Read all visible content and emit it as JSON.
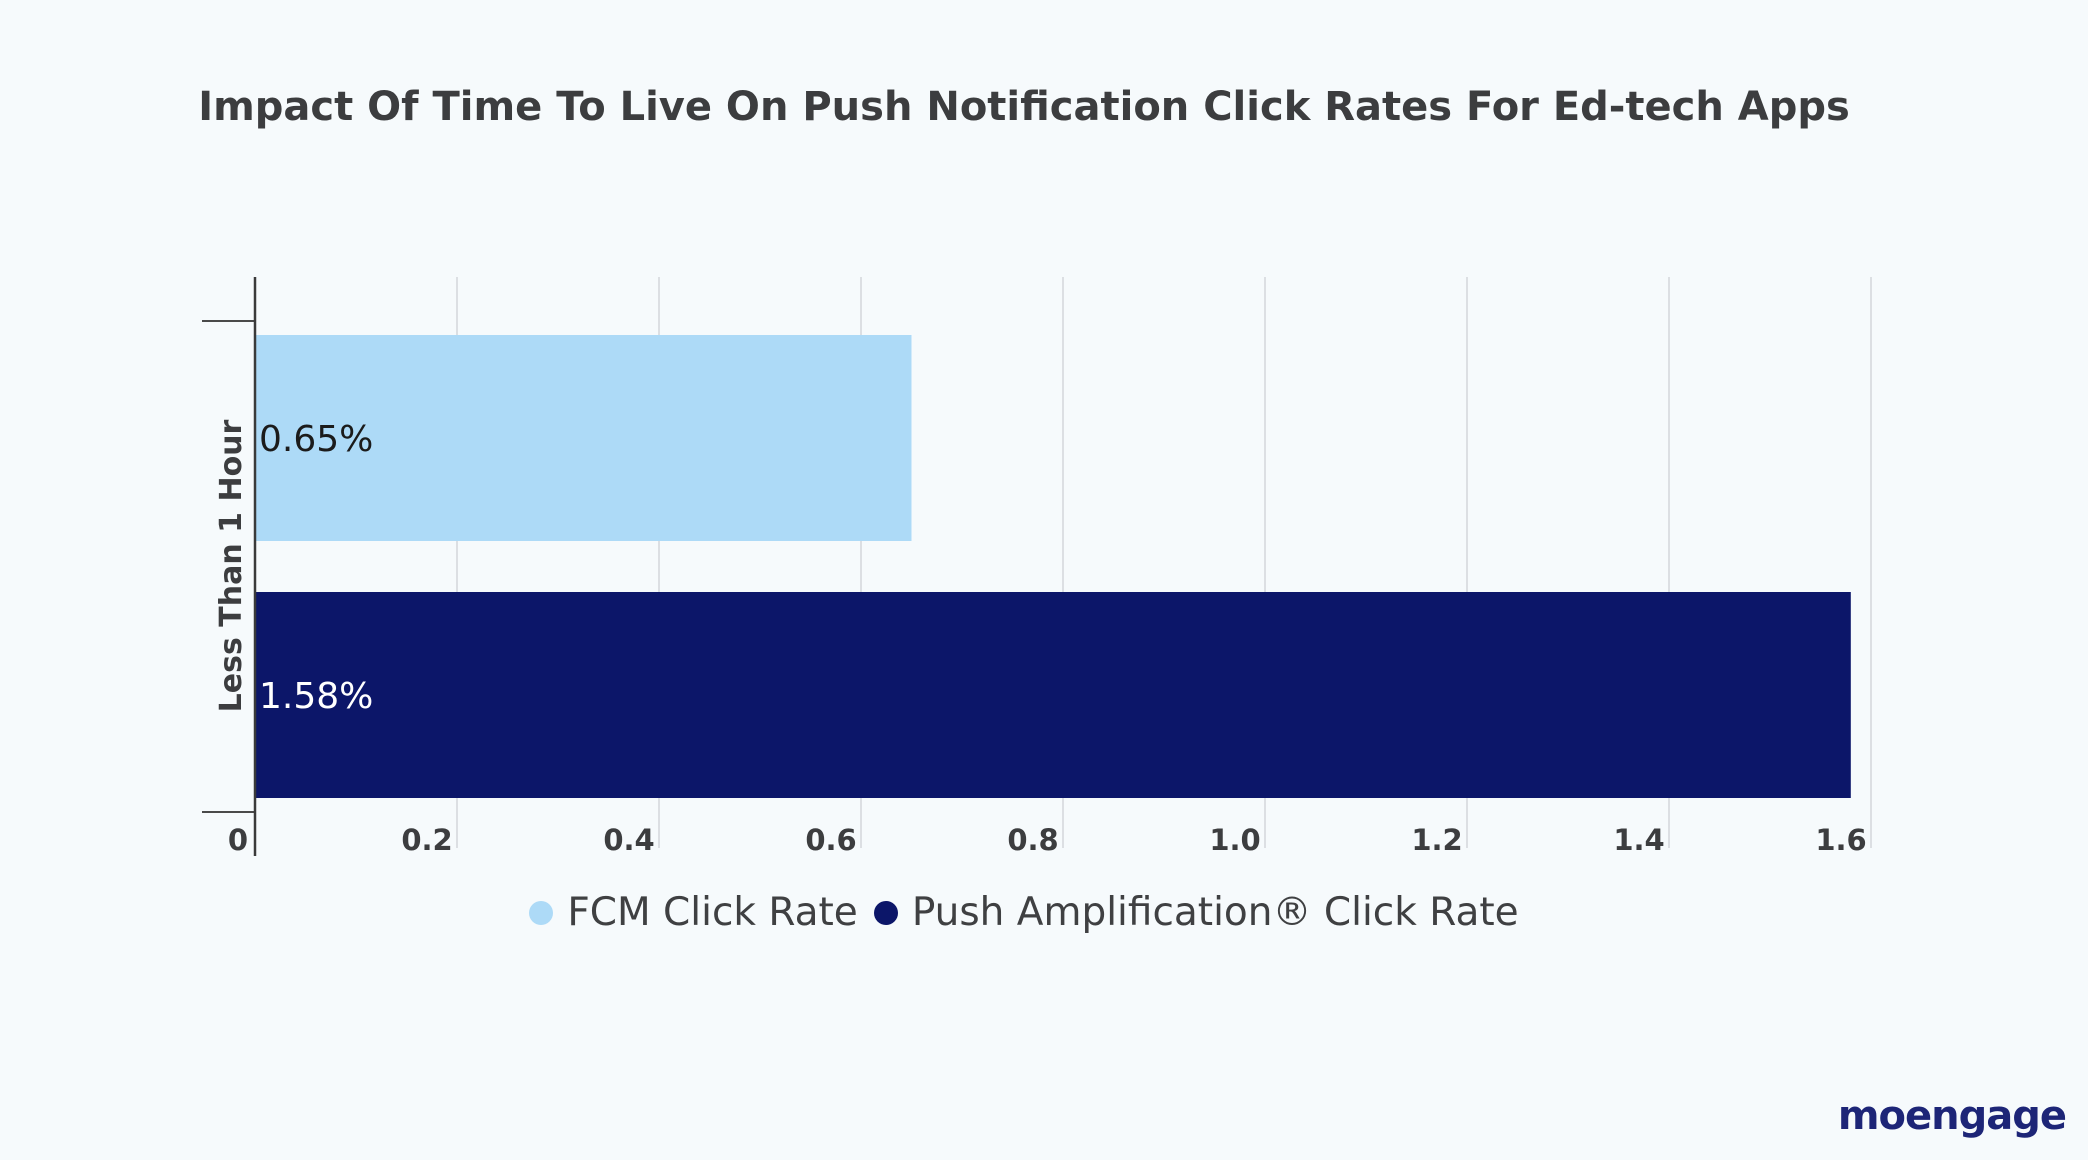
{
  "brand": {
    "logo_text": "moengage",
    "logo_color": "#1d2577"
  },
  "chart_data": {
    "type": "bar",
    "orientation": "horizontal",
    "title": "Impact Of Time To Live On Push Notification Click Rates For Ed-tech Apps",
    "categories": [
      "Less Than 1 Hour"
    ],
    "series": [
      {
        "name": "FCM Click Rate",
        "values": [
          0.65
        ],
        "color": "#addaf7",
        "label": "0.65%"
      },
      {
        "name": "Push Amplification® Click Rate",
        "values": [
          1.58
        ],
        "color": "#0c1669",
        "label": "1.58%"
      }
    ],
    "xlim": [
      0,
      1.6
    ],
    "xticks": [
      "0",
      "0.2",
      "0.4",
      "0.6",
      "0.8",
      "1.0",
      "1.2",
      "1.4",
      "1.6"
    ],
    "grid": true,
    "legend_position": "bottom"
  }
}
